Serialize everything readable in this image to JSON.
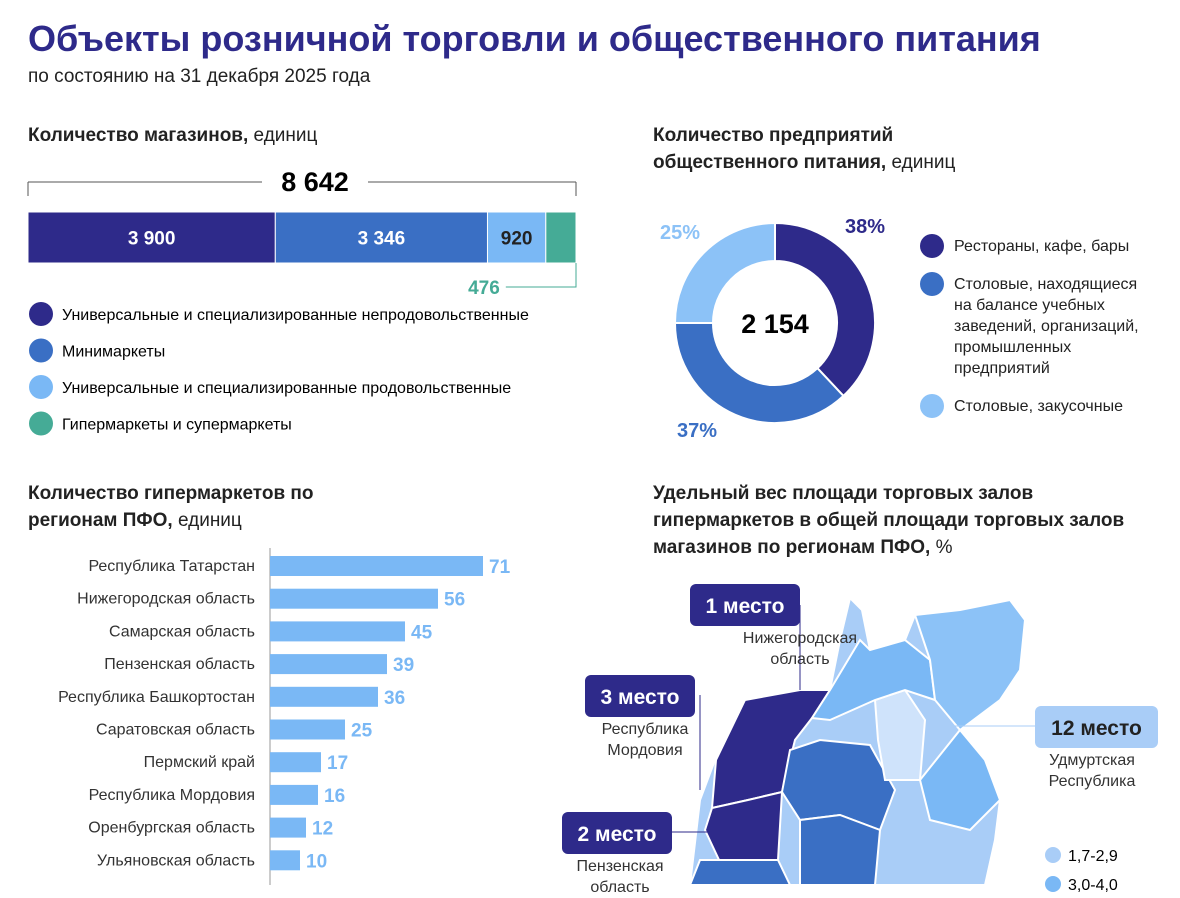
{
  "header": {
    "title": "Объекты розничной торговли и общественного питания",
    "subtitle": "по состоянию на 31 декабря 2025 года"
  },
  "chart_data": [
    {
      "type": "stacked-bar",
      "title": "Количество магазинов,",
      "unit": "единиц",
      "total": {
        "value": 8642,
        "label": "8 642"
      },
      "series": [
        {
          "name": "Универсальные и специализированные непродовольственные",
          "color": "#2e2a8a",
          "values": [
            3900
          ],
          "value_labels": [
            "3 900"
          ]
        },
        {
          "name": "Минимаркеты",
          "color": "#3a6fc4",
          "values": [
            3346
          ],
          "value_labels": [
            "3 346"
          ]
        },
        {
          "name": "Универсальные и специализированные продовольственные",
          "color": "#7ab8f5",
          "values": [
            920
          ]
        },
        {
          "name": "Гипермаркеты и супермаркеты",
          "color": "#45ab96",
          "values": [
            476
          ]
        }
      ]
    },
    {
      "type": "donut",
      "title": "Количество предприятий общественного питания,",
      "unit": "единиц",
      "total": {
        "value": 2154,
        "label": "2 154"
      },
      "categories": [
        "Рестораны, кафе, бары",
        "Столовые, находящиеся на балансе учебных заведений, организаций, промышленных предприятий",
        "Столовые, закусочные"
      ],
      "values": [
        38,
        37,
        25
      ],
      "value_labels": [
        "38%",
        "37%",
        "25%"
      ],
      "colors": [
        "#2e2a8a",
        "#3a6fc4",
        "#8cc2f7"
      ]
    },
    {
      "type": "hbar",
      "title": "Количество гипермаркетов по регионам ПФО,",
      "unit": "единиц",
      "categories": [
        "Республика Татарстан",
        "Нижегородская область",
        "Самарская область",
        "Пензенская область",
        "Республика Башкортостан",
        "Саратовская область",
        "Пермский край",
        "Республика Мордовия",
        "Оренбургская область",
        "Ульяновская область"
      ],
      "values": [
        71,
        56,
        45,
        39,
        36,
        25,
        17,
        16,
        12,
        10
      ],
      "color": "#7ab8f5"
    }
  ],
  "map": {
    "title": "Удельный вес площади торговых залов гипермаркетов в общей площади торговых залов магазинов по регионам ПФО,",
    "unit": "%",
    "badges": [
      {
        "rank": "1 место",
        "region": "Нижегородская область"
      },
      {
        "rank": "3 место",
        "region": "Республика Мордовия"
      },
      {
        "rank": "2 место",
        "region": "Пензенская область"
      },
      {
        "rank": "12 место",
        "region": "Удмуртская Республика"
      }
    ],
    "legend": [
      "1,7-2,9",
      "3,0-4,0"
    ]
  }
}
